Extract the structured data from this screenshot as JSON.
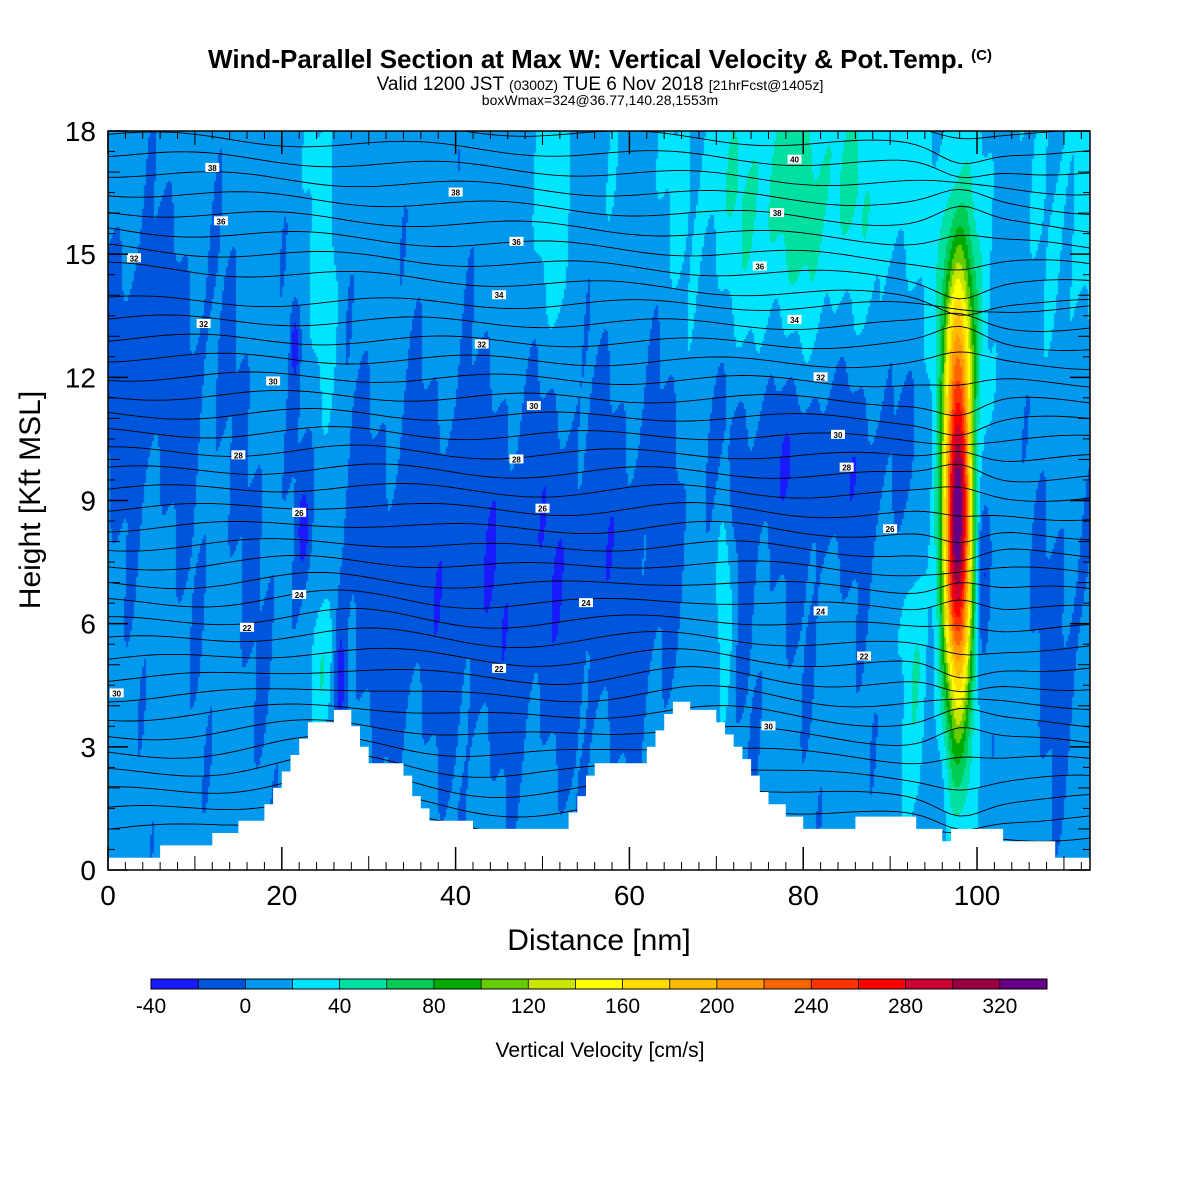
{
  "header": {
    "title_main": "Wind-Parallel Section at Max W: Vertical Velocity & Pot.Temp.",
    "title_mark": "(C)",
    "valid_prefix": "Valid 1200 JST",
    "valid_utc": "(0300Z)",
    "valid_date": "TUE 6 Nov 2018",
    "valid_fcst": "[21hrFcst@1405z]",
    "box_info": "boxWmax=324@36.77,140.28,1553m"
  },
  "chart_data": {
    "type": "heatmap",
    "title": "Wind-Parallel Section at Max W: Vertical Velocity & Pot.Temp.",
    "xlabel": "Distance [nm]",
    "ylabel": "Height [Kft MSL]",
    "xlim": [
      0,
      113
    ],
    "ylim": [
      0,
      18
    ],
    "x_ticks": [
      0,
      20,
      40,
      60,
      80,
      100
    ],
    "y_ticks": [
      0,
      3,
      6,
      9,
      12,
      15,
      18
    ],
    "colorbar": {
      "label": "Vertical Velocity [cm/s]",
      "levels": [
        -40,
        -20,
        0,
        20,
        40,
        60,
        80,
        100,
        120,
        140,
        160,
        180,
        200,
        220,
        240,
        260,
        280,
        300,
        320,
        340
      ],
      "tick_labels": [
        -40,
        0,
        40,
        80,
        120,
        160,
        200,
        240,
        280,
        320
      ],
      "colors": [
        "#1a1aff",
        "#0055dd",
        "#0099ee",
        "#00e5ff",
        "#00e0a0",
        "#00cc55",
        "#00aa00",
        "#66cc00",
        "#c8e600",
        "#ffff00",
        "#ffdd00",
        "#ffbb00",
        "#ff9900",
        "#ff6600",
        "#ff3300",
        "#ff0000",
        "#cc0033",
        "#990044",
        "#660088"
      ]
    },
    "terrain_kft": [
      [
        0,
        0.3
      ],
      [
        6,
        0.3
      ],
      [
        6,
        0.6
      ],
      [
        12,
        0.6
      ],
      [
        12,
        0.9
      ],
      [
        15,
        0.9
      ],
      [
        15,
        1.2
      ],
      [
        18,
        1.2
      ],
      [
        18,
        1.6
      ],
      [
        19,
        1.6
      ],
      [
        19,
        2.0
      ],
      [
        20,
        2.0
      ],
      [
        20,
        2.4
      ],
      [
        21,
        2.4
      ],
      [
        21,
        2.8
      ],
      [
        22,
        2.8
      ],
      [
        22,
        3.2
      ],
      [
        23,
        3.2
      ],
      [
        23,
        3.6
      ],
      [
        26,
        3.6
      ],
      [
        26,
        3.9
      ],
      [
        28,
        3.9
      ],
      [
        28,
        3.5
      ],
      [
        29,
        3.5
      ],
      [
        29,
        3.0
      ],
      [
        30,
        3.0
      ],
      [
        30,
        2.6
      ],
      [
        34,
        2.6
      ],
      [
        34,
        2.3
      ],
      [
        35,
        2.3
      ],
      [
        35,
        1.8
      ],
      [
        36,
        1.8
      ],
      [
        36,
        1.5
      ],
      [
        37,
        1.5
      ],
      [
        37,
        1.2
      ],
      [
        42,
        1.2
      ],
      [
        42,
        1.0
      ],
      [
        53,
        1.0
      ],
      [
        53,
        1.4
      ],
      [
        54,
        1.4
      ],
      [
        54,
        1.8
      ],
      [
        55,
        1.8
      ],
      [
        55,
        2.3
      ],
      [
        56,
        2.3
      ],
      [
        56,
        2.6
      ],
      [
        62,
        2.6
      ],
      [
        62,
        3.0
      ],
      [
        63,
        3.0
      ],
      [
        63,
        3.4
      ],
      [
        64,
        3.4
      ],
      [
        64,
        3.8
      ],
      [
        65,
        3.8
      ],
      [
        65,
        4.1
      ],
      [
        67,
        4.1
      ],
      [
        67,
        3.9
      ],
      [
        70,
        3.9
      ],
      [
        70,
        3.6
      ],
      [
        71,
        3.6
      ],
      [
        71,
        3.3
      ],
      [
        72,
        3.3
      ],
      [
        72,
        3.0
      ],
      [
        73,
        3.0
      ],
      [
        73,
        2.7
      ],
      [
        74,
        2.7
      ],
      [
        74,
        2.3
      ],
      [
        75,
        2.3
      ],
      [
        75,
        1.9
      ],
      [
        76,
        1.9
      ],
      [
        76,
        1.6
      ],
      [
        78,
        1.6
      ],
      [
        78,
        1.3
      ],
      [
        80,
        1.3
      ],
      [
        80,
        1.0
      ],
      [
        86,
        1.0
      ],
      [
        86,
        1.3
      ],
      [
        93,
        1.3
      ],
      [
        93,
        1.0
      ],
      [
        96,
        1.0
      ],
      [
        96,
        0.7
      ],
      [
        97,
        0.7
      ],
      [
        97,
        1.0
      ],
      [
        103,
        1.0
      ],
      [
        103,
        0.7
      ],
      [
        109,
        0.7
      ],
      [
        109,
        0.3
      ],
      [
        113,
        0.3
      ]
    ],
    "theta_contour_labels": [
      {
        "x": 1,
        "y": 4.3,
        "v": "30"
      },
      {
        "x": 16,
        "y": 5.9,
        "v": "22"
      },
      {
        "x": 22,
        "y": 6.7,
        "v": "24"
      },
      {
        "x": 22,
        "y": 8.7,
        "v": "26"
      },
      {
        "x": 15,
        "y": 10.1,
        "v": "28"
      },
      {
        "x": 19,
        "y": 11.9,
        "v": "30"
      },
      {
        "x": 11,
        "y": 13.3,
        "v": "32"
      },
      {
        "x": 3,
        "y": 14.9,
        "v": "32"
      },
      {
        "x": 13,
        "y": 15.8,
        "v": "36"
      },
      {
        "x": 12,
        "y": 17.1,
        "v": "38"
      },
      {
        "x": 45,
        "y": 4.9,
        "v": "22"
      },
      {
        "x": 55,
        "y": 6.5,
        "v": "24"
      },
      {
        "x": 50,
        "y": 8.8,
        "v": "26"
      },
      {
        "x": 47,
        "y": 10.0,
        "v": "28"
      },
      {
        "x": 49,
        "y": 11.3,
        "v": "30"
      },
      {
        "x": 43,
        "y": 12.8,
        "v": "32"
      },
      {
        "x": 45,
        "y": 14.0,
        "v": "34"
      },
      {
        "x": 47,
        "y": 15.3,
        "v": "36"
      },
      {
        "x": 40,
        "y": 16.5,
        "v": "38"
      },
      {
        "x": 76,
        "y": 3.5,
        "v": "30"
      },
      {
        "x": 87,
        "y": 5.2,
        "v": "22"
      },
      {
        "x": 82,
        "y": 6.3,
        "v": "24"
      },
      {
        "x": 90,
        "y": 8.3,
        "v": "26"
      },
      {
        "x": 85,
        "y": 9.8,
        "v": "28"
      },
      {
        "x": 84,
        "y": 10.6,
        "v": "30"
      },
      {
        "x": 82,
        "y": 12.0,
        "v": "32"
      },
      {
        "x": 79,
        "y": 13.4,
        "v": "34"
      },
      {
        "x": 75,
        "y": 14.7,
        "v": "36"
      },
      {
        "x": 77,
        "y": 16.0,
        "v": "38"
      },
      {
        "x": 79,
        "y": 17.3,
        "v": "40"
      }
    ]
  }
}
